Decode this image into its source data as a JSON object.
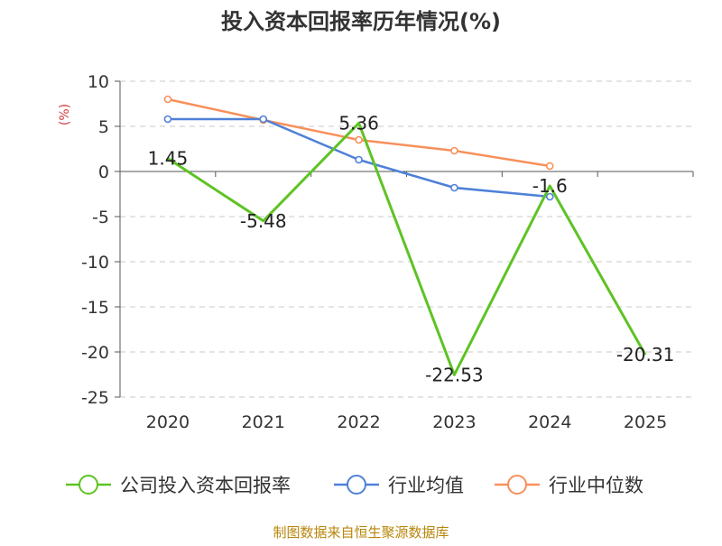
{
  "chart_data": {
    "type": "line",
    "title": "投入资本回报率历年情况(%)",
    "ylabel": "(%)",
    "xlabel": "",
    "ylim": [
      -25,
      10
    ],
    "yticks": [
      10,
      5,
      0,
      -5,
      -10,
      -15,
      -20,
      -25
    ],
    "categories": [
      "2020",
      "2021",
      "2022",
      "2023",
      "2024",
      "2025"
    ],
    "grid": true,
    "legend_position": "bottom",
    "series": [
      {
        "name": "公司投入资本回报率",
        "color": "#5ec324",
        "values": [
          1.45,
          -5.48,
          5.36,
          -22.53,
          -1.6,
          -20.31
        ],
        "labels": [
          "1.45",
          "-5.48",
          "5.36",
          "-22.53",
          "-1.6",
          "-20.31"
        ]
      },
      {
        "name": "行业均值",
        "color": "#4f81d8",
        "values": [
          5.8,
          5.8,
          1.3,
          -1.8,
          -2.8,
          null
        ]
      },
      {
        "name": "行业中位数",
        "color": "#f7905b",
        "values": [
          8.0,
          5.7,
          3.5,
          2.3,
          0.6,
          null
        ]
      }
    ],
    "source": "制图数据来自恒生聚源数据库"
  }
}
